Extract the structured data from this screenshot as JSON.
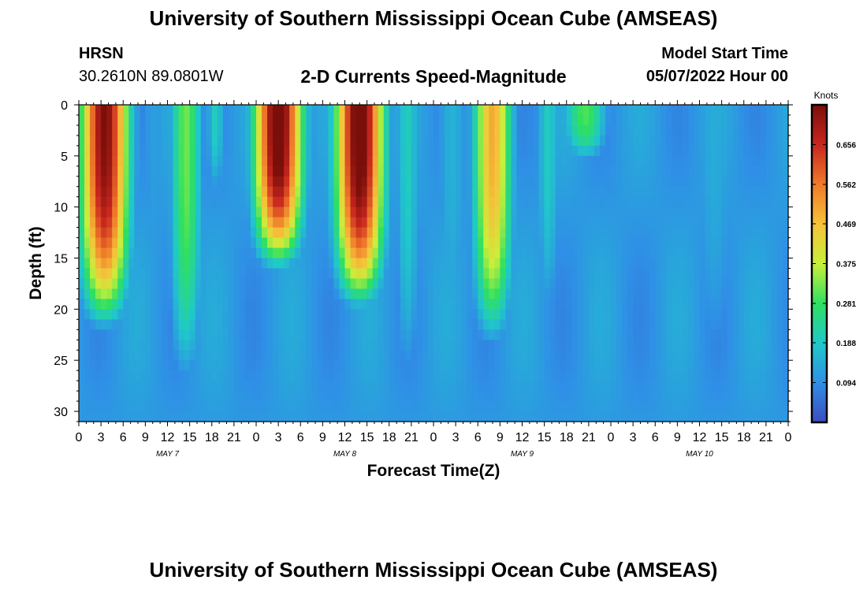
{
  "header": {
    "title": "University of Southern Mississippi Ocean Cube (AMSEAS)",
    "station": "HRSN",
    "coordinates": "30.2610N  89.0801W",
    "model_start_label": "Model Start Time",
    "model_start_value": "05/07/2022 Hour 00"
  },
  "footer": {
    "title": "University of Southern Mississippi Ocean Cube (AMSEAS)"
  },
  "colormap": [
    "#3b4cc0",
    "#2f8fe6",
    "#1fc9c9",
    "#2fe060",
    "#c8f03a",
    "#f5c23a",
    "#f07a2a",
    "#c8261e",
    "#7a0f0a"
  ],
  "chart_data": {
    "type": "heatmap",
    "title": "2-D Currents Speed-Magnitude",
    "xlabel": "Forecast Time(Z)",
    "ylabel": "Depth (ft)",
    "x_range_hours": [
      0,
      96
    ],
    "y_range_ft": [
      0,
      31
    ],
    "y_ticks": [
      0,
      5,
      10,
      15,
      20,
      25,
      30
    ],
    "x_tick_labels": [
      "0",
      "3",
      "6",
      "9",
      "12",
      "15",
      "18",
      "21",
      "0",
      "3",
      "6",
      "9",
      "12",
      "15",
      "18",
      "21",
      "0",
      "3",
      "6",
      "9",
      "12",
      "15",
      "18",
      "21",
      "0",
      "3",
      "6",
      "9",
      "12",
      "15",
      "18",
      "21",
      "0"
    ],
    "day_labels": [
      {
        "label": "MAY 7",
        "hour": 12
      },
      {
        "label": "MAY 8",
        "hour": 36
      },
      {
        "label": "MAY 9",
        "hour": 60
      },
      {
        "label": "MAY 10",
        "hour": 84
      }
    ],
    "colorbar": {
      "units": "Knots",
      "min": 0.0,
      "max": 0.75,
      "ticks": [
        0.094,
        0.188,
        0.281,
        0.375,
        0.469,
        0.562,
        0.656
      ]
    },
    "features": [
      {
        "hour": 3.5,
        "width": 3.2,
        "amp": 0.75,
        "depth": 23
      },
      {
        "hour": 10,
        "width": 1.8,
        "amp": 0.12,
        "depth": 28
      },
      {
        "hour": 14.5,
        "width": 2.2,
        "amp": 0.32,
        "depth": 30
      },
      {
        "hour": 18.5,
        "width": 1.3,
        "amp": 0.2,
        "depth": 10
      },
      {
        "hour": 27,
        "width": 3.2,
        "amp": 0.8,
        "depth": 17
      },
      {
        "hour": 33,
        "width": 1.5,
        "amp": 0.05,
        "depth": 31
      },
      {
        "hour": 38,
        "width": 3.2,
        "amp": 0.8,
        "depth": 21
      },
      {
        "hour": 44.5,
        "width": 1.8,
        "amp": 0.2,
        "depth": 31
      },
      {
        "hour": 50.5,
        "width": 2.5,
        "amp": 0.15,
        "depth": 31
      },
      {
        "hour": 56,
        "width": 2.6,
        "amp": 0.5,
        "depth": 25
      },
      {
        "hour": 62,
        "width": 1.5,
        "amp": 0.08,
        "depth": 28
      },
      {
        "hour": 63.5,
        "width": 1.6,
        "amp": 0.2,
        "depth": 24
      },
      {
        "hour": 68.5,
        "width": 3,
        "amp": 0.3,
        "depth": 6
      },
      {
        "hour": 73.5,
        "width": 2.5,
        "amp": 0.06,
        "depth": 31
      },
      {
        "hour": 77.5,
        "width": 2,
        "amp": 0.1,
        "depth": 31
      },
      {
        "hour": 86,
        "width": 3.6,
        "amp": 0.14,
        "depth": 31
      }
    ]
  }
}
